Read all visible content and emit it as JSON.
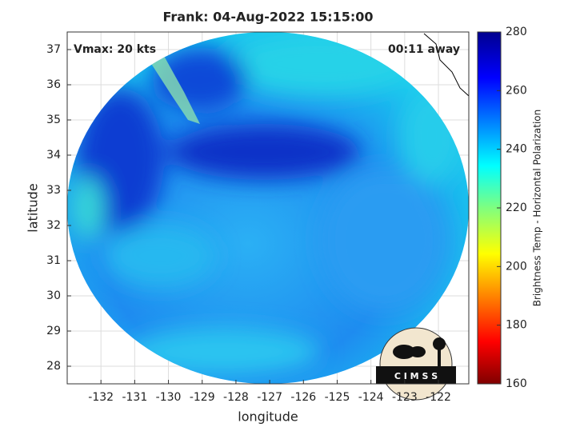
{
  "chart_data": {
    "type": "map",
    "title": "Frank: 04-Aug-2022 15:15:00",
    "xlabel": "longitude",
    "ylabel": "latitude",
    "annotations": [
      "Vmax: 20 kts",
      "00:11 away"
    ],
    "xlim": [
      -133,
      -121.1
    ],
    "ylim": [
      27.5,
      37.5
    ],
    "xticks": [
      -132,
      -131,
      -130,
      -129,
      -128,
      -127,
      -126,
      -125,
      -124,
      -123,
      -122
    ],
    "yticks": [
      28,
      29,
      30,
      31,
      32,
      33,
      34,
      35,
      36,
      37
    ],
    "grid": true,
    "colorbar": {
      "label": "Brightness Temp - Horizontal Polarization",
      "lim": [
        160,
        280
      ],
      "ticks": [
        160,
        180,
        200,
        220,
        240,
        260,
        280
      ]
    },
    "logo": "C I M S S"
  }
}
